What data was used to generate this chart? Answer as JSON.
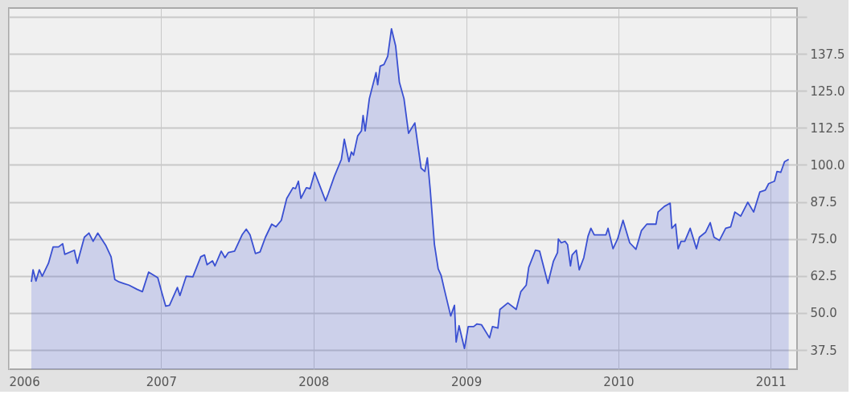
{
  "chart_data": {
    "type": "area",
    "grid": true,
    "xlim": [
      "2006-01-01",
      "2011-03-05"
    ],
    "ylim": [
      31,
      153
    ],
    "xticks": [
      "2006",
      "2007",
      "2008",
      "2009",
      "2010",
      "2011"
    ],
    "yticks": [
      {
        "value": 37.5,
        "label": "37.5"
      },
      {
        "value": 50,
        "label": "50.0"
      },
      {
        "value": 62.5,
        "label": "62.5"
      },
      {
        "value": 75,
        "label": "75.0"
      },
      {
        "value": 87.5,
        "label": "87.5"
      },
      {
        "value": 100,
        "label": "100.0"
      },
      {
        "value": 112.5,
        "label": "112.5"
      },
      {
        "value": 125,
        "label": "125.0"
      },
      {
        "value": 137.5,
        "label": "137.5"
      },
      {
        "value": 150,
        "label": null
      }
    ],
    "x": [
      "2006-02-24",
      "2006-02-28",
      "2006-03-07",
      "2006-03-15",
      "2006-03-22",
      "2006-04-06",
      "2006-04-17",
      "2006-04-30",
      "2006-05-10",
      "2006-05-15",
      "2006-06-07",
      "2006-06-14",
      "2006-07-01",
      "2006-07-12",
      "2006-07-22",
      "2006-08-02",
      "2006-08-21",
      "2006-09-03",
      "2006-09-12",
      "2006-09-22",
      "2006-10-03",
      "2006-10-16",
      "2006-11-04",
      "2006-11-17",
      "2006-12-02",
      "2006-12-24",
      "2007-01-03",
      "2007-01-12",
      "2007-01-21",
      "2007-02-09",
      "2007-02-15",
      "2007-03-02",
      "2007-03-18",
      "2007-04-06",
      "2007-04-15",
      "2007-04-21",
      "2007-05-04",
      "2007-05-10",
      "2007-05-25",
      "2007-06-03",
      "2007-06-11",
      "2007-06-26",
      "2007-07-14",
      "2007-07-24",
      "2007-08-02",
      "2007-08-15",
      "2007-08-26",
      "2007-09-08",
      "2007-09-23",
      "2007-10-03",
      "2007-10-16",
      "2007-10-29",
      "2007-11-13",
      "2007-11-19",
      "2007-11-26",
      "2007-12-02",
      "2007-12-15",
      "2007-12-24",
      "2008-01-04",
      "2008-01-30",
      "2008-02-05",
      "2008-02-20",
      "2008-03-08",
      "2008-03-15",
      "2008-03-26",
      "2008-04-01",
      "2008-04-06",
      "2008-04-16",
      "2008-04-25",
      "2008-04-29",
      "2008-05-04",
      "2008-05-14",
      "2008-05-30",
      "2008-06-03",
      "2008-06-09",
      "2008-06-18",
      "2008-06-27",
      "2008-07-06",
      "2008-07-16",
      "2008-07-25",
      "2008-08-05",
      "2008-08-16",
      "2008-08-31",
      "2008-09-15",
      "2008-09-24",
      "2008-09-30",
      "2008-10-07",
      "2008-10-17",
      "2008-10-26",
      "2008-11-02",
      "2008-11-10",
      "2008-11-25",
      "2008-12-04",
      "2008-12-08",
      "2008-12-15",
      "2008-12-28",
      "2009-01-06",
      "2009-01-19",
      "2009-01-27",
      "2009-02-07",
      "2009-02-26",
      "2009-03-05",
      "2009-03-18",
      "2009-03-23",
      "2009-04-11",
      "2009-05-01",
      "2009-05-12",
      "2009-05-25",
      "2009-05-31",
      "2009-06-16",
      "2009-06-26",
      "2009-07-16",
      "2009-07-29",
      "2009-08-08",
      "2009-08-10",
      "2009-08-17",
      "2009-08-26",
      "2009-09-01",
      "2009-09-08",
      "2009-09-12",
      "2009-09-22",
      "2009-09-29",
      "2009-10-10",
      "2009-10-20",
      "2009-10-27",
      "2009-11-04",
      "2009-12-02",
      "2009-12-07",
      "2009-12-19",
      "2009-12-30",
      "2010-01-12",
      "2010-01-28",
      "2010-02-12",
      "2010-02-25",
      "2010-03-10",
      "2010-04-01",
      "2010-04-06",
      "2010-04-21",
      "2010-05-05",
      "2010-05-09",
      "2010-05-18",
      "2010-05-24",
      "2010-05-31",
      "2010-06-09",
      "2010-06-22",
      "2010-07-07",
      "2010-07-14",
      "2010-07-29",
      "2010-08-09",
      "2010-08-18",
      "2010-08-31",
      "2010-09-15",
      "2010-09-27",
      "2010-10-07",
      "2010-10-21",
      "2010-11-07",
      "2010-11-21",
      "2010-12-06",
      "2010-12-19",
      "2010-12-27",
      "2011-01-10",
      "2011-01-16",
      "2011-01-25",
      "2011-02-03",
      "2011-02-13"
    ],
    "series": [
      {
        "color": "#3a50d2",
        "values": [
          60.5,
          64.6,
          60.8,
          64.6,
          62.4,
          66.8,
          72.3,
          72.3,
          73.4,
          69.8,
          71.2,
          66.8,
          75.6,
          77.0,
          74.2,
          77.0,
          72.9,
          69.0,
          61.3,
          60.5,
          60.0,
          59.4,
          58.0,
          57.2,
          63.8,
          61.9,
          56.7,
          52.3,
          52.6,
          58.6,
          55.9,
          62.4,
          62.2,
          69.0,
          69.6,
          66.3,
          67.6,
          65.9,
          70.9,
          68.7,
          70.4,
          70.9,
          76.4,
          78.3,
          76.4,
          70.1,
          70.6,
          75.6,
          80.0,
          79.1,
          81.3,
          88.7,
          92.3,
          92.0,
          94.5,
          88.7,
          92.3,
          92.0,
          97.5,
          87.9,
          90.1,
          96.1,
          101.9,
          108.7,
          101.1,
          104.4,
          103.3,
          109.8,
          111.5,
          116.7,
          111.5,
          122.4,
          131.2,
          127.1,
          133.4,
          133.9,
          136.7,
          146.0,
          140.2,
          127.9,
          122.4,
          110.7,
          114.2,
          98.9,
          97.8,
          102.4,
          91.5,
          73.1,
          64.9,
          62.7,
          57.8,
          49.0,
          52.6,
          40.2,
          45.7,
          38.0,
          45.4,
          45.4,
          46.3,
          46.0,
          41.6,
          45.4,
          44.9,
          51.2,
          53.4,
          51.2,
          57.2,
          59.4,
          65.4,
          71.2,
          70.9,
          60.0,
          67.4,
          70.4,
          75.0,
          73.7,
          74.2,
          73.1,
          65.9,
          69.6,
          71.2,
          64.6,
          68.7,
          75.9,
          78.6,
          76.4,
          76.4,
          78.6,
          71.7,
          75.0,
          81.3,
          73.7,
          71.5,
          77.8,
          80.0,
          80.0,
          84.1,
          86.0,
          87.1,
          78.6,
          80.0,
          71.7,
          74.2,
          74.2,
          78.6,
          71.7,
          75.6,
          77.3,
          80.5,
          75.6,
          74.5,
          78.6,
          79.1,
          84.1,
          82.7,
          87.4,
          84.1,
          90.9,
          91.5,
          93.7,
          94.5,
          97.8,
          97.5,
          101.1,
          101.9
        ]
      }
    ]
  }
}
